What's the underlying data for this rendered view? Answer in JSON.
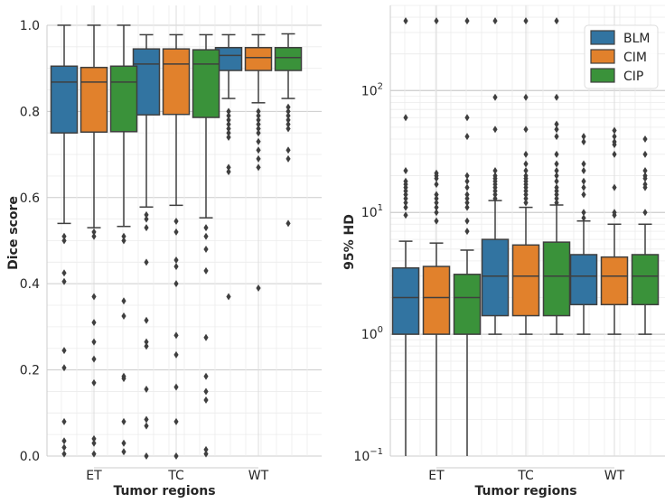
{
  "chart_data": [
    {
      "type": "box",
      "scale": "linear",
      "xlabel": "Tumor regions",
      "ylabel": "Dice score",
      "ylim": [
        0,
        1.0
      ],
      "yticks": [
        "0.0",
        "0.2",
        "0.4",
        "0.6",
        "0.8",
        "1.0"
      ],
      "ytick_values": [
        0,
        0.2,
        0.4,
        0.6,
        0.8,
        1.0
      ],
      "categories": [
        "ET",
        "TC",
        "WT"
      ],
      "series": [
        {
          "name": "BLM",
          "color": "#3274a1",
          "boxes": [
            {
              "whislo": 0.54,
              "q1": 0.75,
              "med": 0.868,
              "q3": 0.905,
              "whishi": 1.0,
              "fliers": [
                0.51,
                0.5,
                0.425,
                0.405,
                0.245,
                0.205,
                0.08,
                0.035,
                0.02,
                0.005
              ]
            },
            {
              "whislo": 0.578,
              "q1": 0.792,
              "med": 0.91,
              "q3": 0.945,
              "whishi": 0.978,
              "fliers": [
                0.56,
                0.55,
                0.53,
                0.45,
                0.315,
                0.265,
                0.255,
                0.155,
                0.085,
                0.07,
                0.0
              ]
            },
            {
              "whislo": 0.83,
              "q1": 0.895,
              "med": 0.93,
              "q3": 0.948,
              "whishi": 0.978,
              "fliers": [
                0.8,
                0.79,
                0.78,
                0.77,
                0.76,
                0.75,
                0.74,
                0.67,
                0.66,
                0.37
              ]
            }
          ]
        },
        {
          "name": "CIM",
          "color": "#e1812c",
          "boxes": [
            {
              "whislo": 0.53,
              "q1": 0.752,
              "med": 0.868,
              "q3": 0.902,
              "whishi": 1.0,
              "fliers": [
                0.52,
                0.51,
                0.37,
                0.31,
                0.265,
                0.225,
                0.17,
                0.04,
                0.03,
                0.005
              ]
            },
            {
              "whislo": 0.582,
              "q1": 0.793,
              "med": 0.91,
              "q3": 0.945,
              "whishi": 0.978,
              "fliers": [
                0.545,
                0.52,
                0.455,
                0.44,
                0.4,
                0.28,
                0.235,
                0.16,
                0.08,
                0.0
              ]
            },
            {
              "whislo": 0.82,
              "q1": 0.895,
              "med": 0.925,
              "q3": 0.948,
              "whishi": 0.978,
              "fliers": [
                0.8,
                0.79,
                0.78,
                0.77,
                0.76,
                0.75,
                0.73,
                0.71,
                0.69,
                0.67,
                0.39
              ]
            }
          ]
        },
        {
          "name": "CIP",
          "color": "#3a923a",
          "boxes": [
            {
              "whislo": 0.533,
              "q1": 0.753,
              "med": 0.868,
              "q3": 0.905,
              "whishi": 1.0,
              "fliers": [
                0.51,
                0.5,
                0.36,
                0.325,
                0.185,
                0.18,
                0.08,
                0.03,
                0.01
              ]
            },
            {
              "whislo": 0.553,
              "q1": 0.786,
              "med": 0.91,
              "q3": 0.943,
              "whishi": 0.978,
              "fliers": [
                0.53,
                0.51,
                0.48,
                0.43,
                0.275,
                0.185,
                0.15,
                0.13,
                0.015,
                0.005
              ]
            },
            {
              "whislo": 0.83,
              "q1": 0.895,
              "med": 0.925,
              "q3": 0.948,
              "whishi": 0.98,
              "fliers": [
                0.81,
                0.8,
                0.79,
                0.78,
                0.77,
                0.76,
                0.71,
                0.69,
                0.54
              ]
            }
          ]
        }
      ]
    },
    {
      "type": "box",
      "scale": "log",
      "xlabel": "Tumor regions",
      "ylabel": "95% HD",
      "ylim": [
        0.1,
        500
      ],
      "yticks": [
        {
          "base": "10",
          "exp": "−1",
          "value": 0.1
        },
        {
          "base": "10",
          "exp": "0",
          "value": 1
        },
        {
          "base": "10",
          "exp": "1",
          "value": 10
        },
        {
          "base": "10",
          "exp": "2",
          "value": 100
        }
      ],
      "categories": [
        "ET",
        "TC",
        "WT"
      ],
      "legend": {
        "position": "top-right",
        "entries": [
          "BLM",
          "CIM",
          "CIP"
        ]
      },
      "series": [
        {
          "name": "BLM",
          "color": "#3274a1",
          "boxes": [
            {
              "whislo": 0.1,
              "q1": 1.0,
              "med": 2.0,
              "q3": 3.5,
              "whishi": 5.8,
              "fliers": [
                373,
                60,
                22,
                18,
                17,
                16,
                15,
                14,
                13,
                12,
                11,
                9.5
              ]
            },
            {
              "whislo": 1.0,
              "q1": 1.42,
              "med": 3.0,
              "q3": 6.0,
              "whishi": 12.5,
              "fliers": [
                373,
                88,
                48,
                22,
                20,
                19,
                18,
                17,
                16,
                15,
                14,
                13
              ]
            },
            {
              "whislo": 1.0,
              "q1": 1.75,
              "med": 3.0,
              "q3": 4.5,
              "whishi": 8.5,
              "fliers": [
                42,
                38,
                25,
                22,
                18,
                16,
                14,
                10,
                9
              ]
            }
          ]
        },
        {
          "name": "CIM",
          "color": "#e1812c",
          "boxes": [
            {
              "whislo": 0.1,
              "q1": 1.0,
              "med": 2.0,
              "q3": 3.6,
              "whishi": 5.6,
              "fliers": [
                373,
                21,
                20,
                19,
                17,
                14,
                13,
                12,
                11,
                10,
                8.5
              ]
            },
            {
              "whislo": 1.0,
              "q1": 1.42,
              "med": 3.0,
              "q3": 5.4,
              "whishi": 11.0,
              "fliers": [
                373,
                88,
                48,
                30,
                25,
                22,
                20,
                19,
                18,
                17,
                16,
                15,
                14,
                13,
                12
              ]
            },
            {
              "whislo": 1.0,
              "q1": 1.75,
              "med": 3.0,
              "q3": 4.3,
              "whishi": 8.0,
              "fliers": [
                47,
                42,
                38,
                36,
                30,
                16,
                10,
                9.5
              ]
            }
          ]
        },
        {
          "name": "CIP",
          "color": "#3a923a",
          "boxes": [
            {
              "whislo": 0.1,
              "q1": 1.0,
              "med": 2.0,
              "q3": 3.1,
              "whishi": 4.9,
              "fliers": [
                373,
                60,
                42,
                20,
                18,
                16,
                14,
                13,
                12,
                11,
                8.5,
                7
              ]
            },
            {
              "whislo": 1.0,
              "q1": 1.42,
              "med": 3.0,
              "q3": 5.7,
              "whishi": 11.5,
              "fliers": [
                373,
                88,
                53,
                48,
                42,
                30,
                25,
                22,
                20,
                18,
                16,
                15,
                14,
                13,
                12
              ]
            },
            {
              "whislo": 1.0,
              "q1": 1.75,
              "med": 3.0,
              "q3": 4.5,
              "whishi": 8.0,
              "fliers": [
                40,
                30,
                22,
                20,
                19,
                17,
                16,
                10
              ]
            }
          ]
        }
      ]
    }
  ]
}
